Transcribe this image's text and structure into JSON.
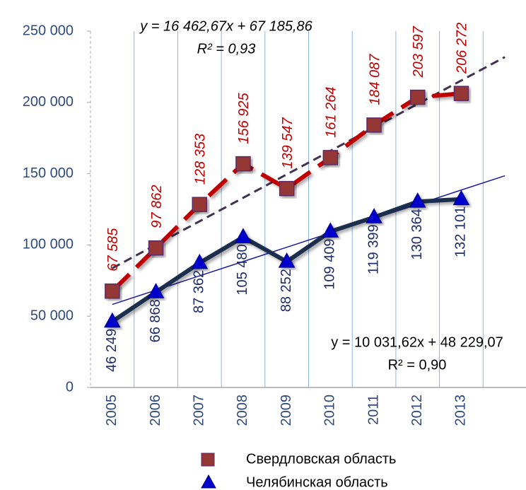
{
  "chart_data": {
    "type": "line",
    "categories": [
      "2005",
      "2006",
      "2007",
      "2008",
      "2009",
      "2010",
      "2011",
      "2012",
      "2013",
      null
    ],
    "series": [
      {
        "name": "Свердловская область",
        "color": "#c00000",
        "marker": "square",
        "marker_color": "#953735",
        "line_style": "dashed",
        "values": [
          67585,
          97862,
          128353,
          156925,
          139547,
          161264,
          184087,
          203597,
          206272,
          null
        ],
        "value_labels": [
          "67 585",
          "97 862",
          "128 353",
          "156 925",
          "139 547",
          "161 264",
          "184 087",
          "203 597",
          "206 272",
          null
        ],
        "trendline": {
          "slope": 16462.67,
          "intercept": 67185.86,
          "color": "#403152",
          "equation": "y = 16 462,67x + 67 185,86",
          "r2": "R² = 0,93"
        }
      },
      {
        "name": "Челябинская область",
        "color": "#1f2d4d",
        "marker": "triangle",
        "marker_color": "#0000cc",
        "line_style": "solid",
        "values": [
          46249,
          66868,
          87362,
          105480,
          88252,
          109409,
          119399,
          130364,
          132101,
          null
        ],
        "value_labels": [
          "46 249",
          "66 868",
          "87 362",
          "105 480",
          "88 252",
          "109 409",
          "119 399",
          "130 364",
          "132 101",
          null
        ],
        "trendline": {
          "slope": 10031.62,
          "intercept": 48229.07,
          "color": "#1a1aa0",
          "equation": "y = 10 031,62x + 48 229,07",
          "r2": "R² = 0,90"
        }
      }
    ],
    "ylim": [
      0,
      250000
    ],
    "yticks": [
      {
        "value": 0,
        "label": "0"
      },
      {
        "value": 50000,
        "label": "50 000"
      },
      {
        "value": 100000,
        "label": "100 000"
      },
      {
        "value": 150000,
        "label": "150 000"
      },
      {
        "value": 200000,
        "label": "200 000"
      },
      {
        "value": 250000,
        "label": "250 000"
      }
    ],
    "grid": true,
    "legend": "bottom"
  }
}
